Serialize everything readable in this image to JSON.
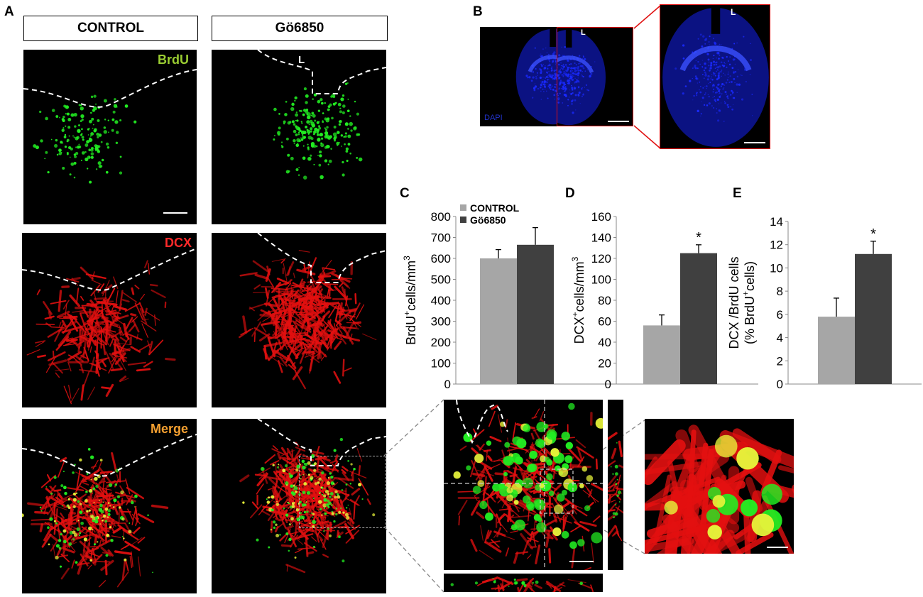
{
  "panels": {
    "A": "A",
    "B": "B",
    "C": "C",
    "D": "D",
    "E": "E"
  },
  "conditions": {
    "control": "CONTROL",
    "treated": "Gö6850"
  },
  "channels": {
    "brdu": "BrdU",
    "dcx": "DCX",
    "merge": "Merge",
    "brdu_color": "#9acd32",
    "dcx_color": "#ff2a2a",
    "merge_color": "#f5a030"
  },
  "lumen_label": "L",
  "dapi_label": "DAPI",
  "colors": {
    "green": "#22ee22",
    "red": "#e31010",
    "dapi": "#1a2aff",
    "control_bar": "#a6a6a6",
    "treated_bar": "#404040",
    "highlight": "#e01010"
  },
  "legend": {
    "control": "CONTROL",
    "treated": "Gö6850"
  },
  "chart_data": [
    {
      "panel": "C",
      "type": "bar",
      "categories": [
        "CONTROL",
        "Gö6850"
      ],
      "values": [
        600,
        665
      ],
      "errors": [
        42,
        82
      ],
      "ylabel": "BrdU+cells/mm3",
      "ylabel_parts": {
        "main": "BrdU",
        "sup": "+",
        "rest": "cells/mm",
        "sup2": "3"
      },
      "ylim": [
        0,
        800
      ],
      "yticks": [
        "0",
        "100",
        "200",
        "300",
        "400",
        "500",
        "600",
        "700",
        "800"
      ],
      "significance": [
        "",
        ""
      ],
      "legend_position": "top-left"
    },
    {
      "panel": "D",
      "type": "bar",
      "categories": [
        "CONTROL",
        "Gö6850"
      ],
      "values": [
        56,
        125
      ],
      "errors": [
        10,
        8
      ],
      "ylabel": "DCX+cells/mm3",
      "ylabel_parts": {
        "main": "DCX",
        "sup": "+",
        "rest": "cells/mm",
        "sup2": "3"
      },
      "ylim": [
        0,
        160
      ],
      "yticks": [
        "0",
        "20",
        "40",
        "60",
        "80",
        "100",
        "120",
        "140",
        "160"
      ],
      "significance": [
        "",
        "*"
      ]
    },
    {
      "panel": "E",
      "type": "bar",
      "categories": [
        "CONTROL",
        "Gö6850"
      ],
      "values": [
        5.8,
        11.2
      ],
      "errors": [
        1.6,
        1.1
      ],
      "ylabel": "DCX /BrdU cells (% BrdU+cells)",
      "ylabel_parts": {
        "line1": "DCX /BrdU cells",
        "line2a": "(% BrdU",
        "line2sup": "+",
        "line2b": "cells)"
      },
      "ylim": [
        0,
        14
      ],
      "yticks": [
        "0",
        "2",
        "4",
        "6",
        "8",
        "10",
        "12",
        "14"
      ],
      "significance": [
        "",
        "*"
      ]
    }
  ]
}
